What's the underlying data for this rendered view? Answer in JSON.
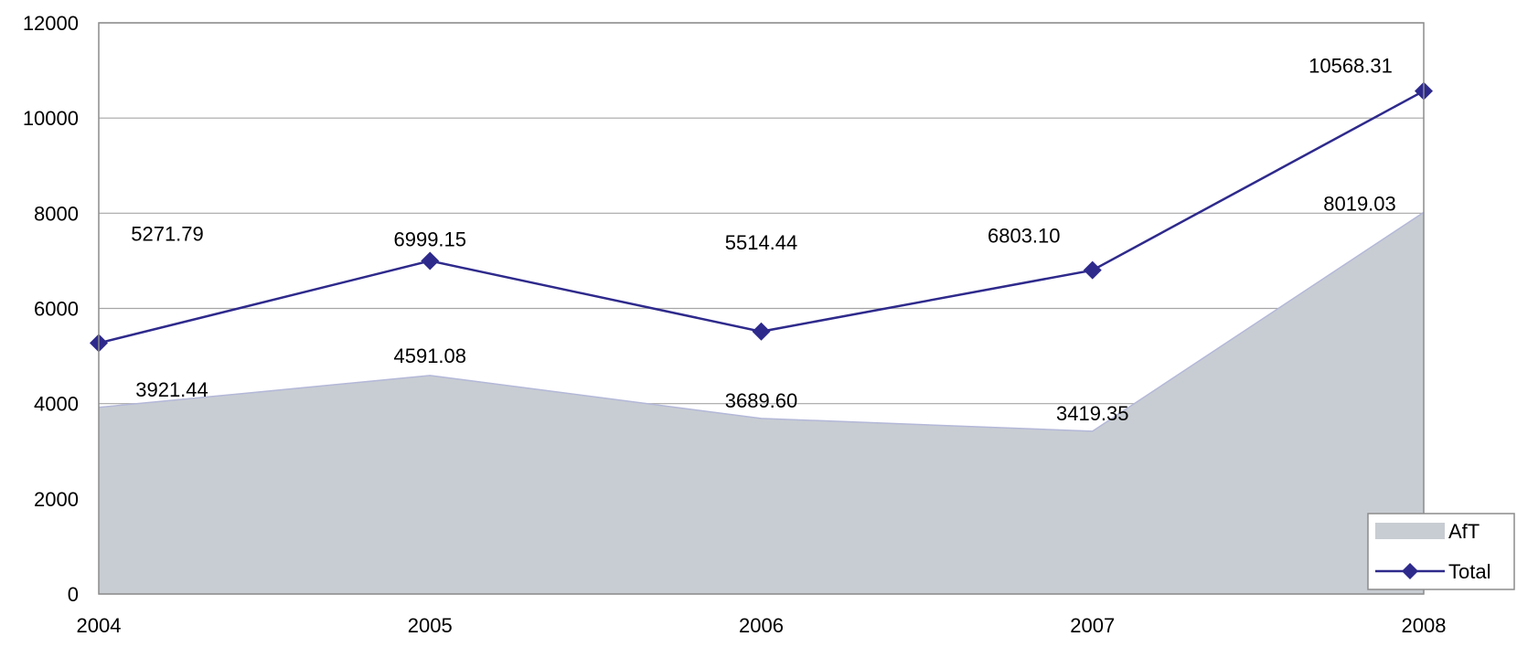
{
  "chart_data": {
    "type": "area",
    "categories": [
      "2004",
      "2005",
      "2006",
      "2007",
      "2008"
    ],
    "ylim": [
      0,
      12000
    ],
    "yticks": [
      "0",
      "2000",
      "4000",
      "6000",
      "8000",
      "10000",
      "12000"
    ],
    "grid": true,
    "legend_position": "bottom-right",
    "series": [
      {
        "name": "AfT",
        "kind": "area",
        "color": "#c8cdd3",
        "values": [
          3921.44,
          4591.08,
          3689.6,
          3419.35,
          8019.03
        ],
        "labels": [
          "3921.44",
          "4591.08",
          "3689.60",
          "3419.35",
          "8019.03"
        ]
      },
      {
        "name": "Total",
        "kind": "line",
        "color": "#2e2a8c",
        "marker": "diamond",
        "values": [
          5271.79,
          6999.15,
          5514.44,
          6803.1,
          10568.31
        ],
        "labels": [
          "5271.79",
          "6999.15",
          "5514.44",
          "6803.10",
          "10568.31"
        ]
      }
    ]
  }
}
